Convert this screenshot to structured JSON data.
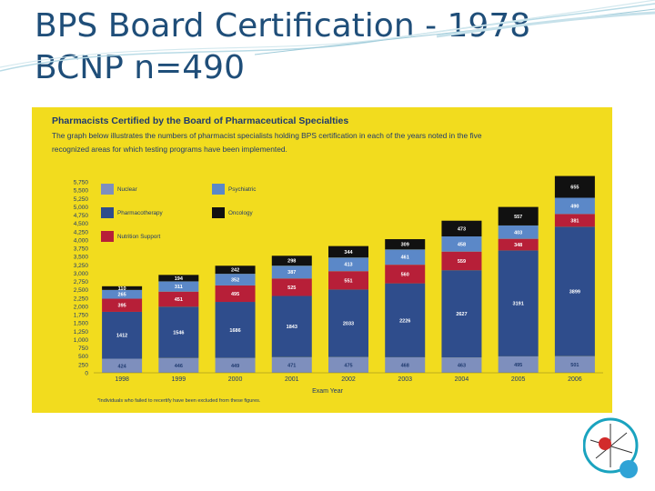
{
  "slide": {
    "title_line1": "BPS Board Certification - 1978",
    "title_line2": "BCNP n=490"
  },
  "chart_data": {
    "type": "bar",
    "stacked": true,
    "title": "Pharmacists Certified by the Board of Pharmaceutical Specialties",
    "subtitle_line1": "The graph below illustrates the numbers of pharmacist specialists holding BPS certification in each of the years noted in the five",
    "subtitle_line2": "recognized areas for which testing programs have been implemented.",
    "xlabel": "Exam Year",
    "ylabel": "",
    "footnote": "*Individuals who failed to recertify have been excluded from these figures.",
    "categories": [
      "1998",
      "1999",
      "2000",
      "2001",
      "2002",
      "2003",
      "2004",
      "2005",
      "2006"
    ],
    "ylim": [
      0,
      5750
    ],
    "yticks": [
      "0",
      "250",
      "500",
      "750",
      "1,000",
      "1,250",
      "1,500",
      "1,750",
      "2,000",
      "2,250",
      "2,500",
      "2,750",
      "3,000",
      "3,250",
      "3,500",
      "3,750",
      "4,000",
      "4,250",
      "4,500",
      "4,750",
      "5,000",
      "5,250",
      "5,500",
      "5,750"
    ],
    "series": [
      {
        "name": "Nuclear",
        "color": "#7e8fbd",
        "values": [
          424,
          446,
          449,
          471,
          475,
          468,
          463,
          495,
          501
        ]
      },
      {
        "name": "Pharmacotherapy",
        "color": "#2f4d8c",
        "values": [
          1412,
          1546,
          1686,
          1843,
          2033,
          2226,
          2627,
          3191,
          3899
        ]
      },
      {
        "name": "Nutrition Support",
        "color": "#b71f38",
        "values": [
          395,
          451,
          495,
          525,
          551,
          560,
          559,
          348,
          381
        ]
      },
      {
        "name": "Psychiatric",
        "color": "#5b88c8",
        "values": [
          265,
          311,
          352,
          387,
          413,
          461,
          458,
          403,
          490
        ]
      },
      {
        "name": "Oncology",
        "color": "#111111",
        "values": [
          110,
          194,
          242,
          298,
          344,
          309,
          473,
          557,
          655
        ]
      }
    ],
    "legend": {
      "placement": "top-left"
    },
    "grid": false
  }
}
